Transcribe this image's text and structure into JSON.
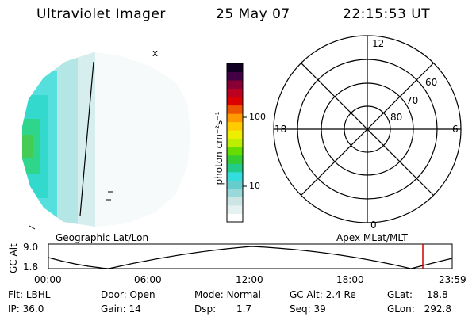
{
  "header": {
    "instrument": "Ultraviolet Imager",
    "date": "25 May 07",
    "time": "22:15:53 UT"
  },
  "colorbar": {
    "unit_label": "photon cm⁻²s⁻¹",
    "tick_100": "100",
    "tick_10": "10",
    "colors": [
      "#ffffff",
      "#e6f2f2",
      "#cce6e6",
      "#99d9d9",
      "#66cccc",
      "#33dddd",
      "#22cc88",
      "#33cc33",
      "#66dd00",
      "#bbee00",
      "#eeee00",
      "#ffcc00",
      "#ff9900",
      "#ee5500",
      "#dd0000",
      "#bb0022",
      "#880033",
      "#440044",
      "#110022"
    ]
  },
  "polar": {
    "mlt_top": "12",
    "mlt_left": "18",
    "mlt_right": "6",
    "mlt_bottom": "0",
    "lat_60": "60",
    "lat_70": "70",
    "lat_80": "80"
  },
  "projection": {
    "left_label": "Geographic Lat/Lon",
    "right_label": "Apex MLat/MLT"
  },
  "orbit_plot": {
    "ylabel": "GC Alt",
    "y_top": "9.0",
    "y_bottom": "1.8",
    "x_ticks": [
      "00:00",
      "06:00",
      "12:00",
      "18:00",
      "23:59"
    ],
    "current_marker_color": "#cc0000"
  },
  "status": {
    "flt_label": "Flt:",
    "flt_value": "LBHL",
    "door_label": "Door:",
    "door_value": "Open",
    "mode_label": "Mode:",
    "mode_value": "Normal",
    "gcalt_label": "GC Alt:",
    "gcalt_value": "2.4 Re",
    "glat_label": "GLat:",
    "glat_value": "18.8",
    "ip_label": "IP:",
    "ip_value": "36.0",
    "gain_label": "Gain:",
    "gain_value": "14",
    "dsp_label": "Dsp:",
    "dsp_value": "1.7",
    "seq_label": "Seq:",
    "seq_value": "39",
    "glon_label": "GLon:",
    "glon_value": "292.8"
  }
}
